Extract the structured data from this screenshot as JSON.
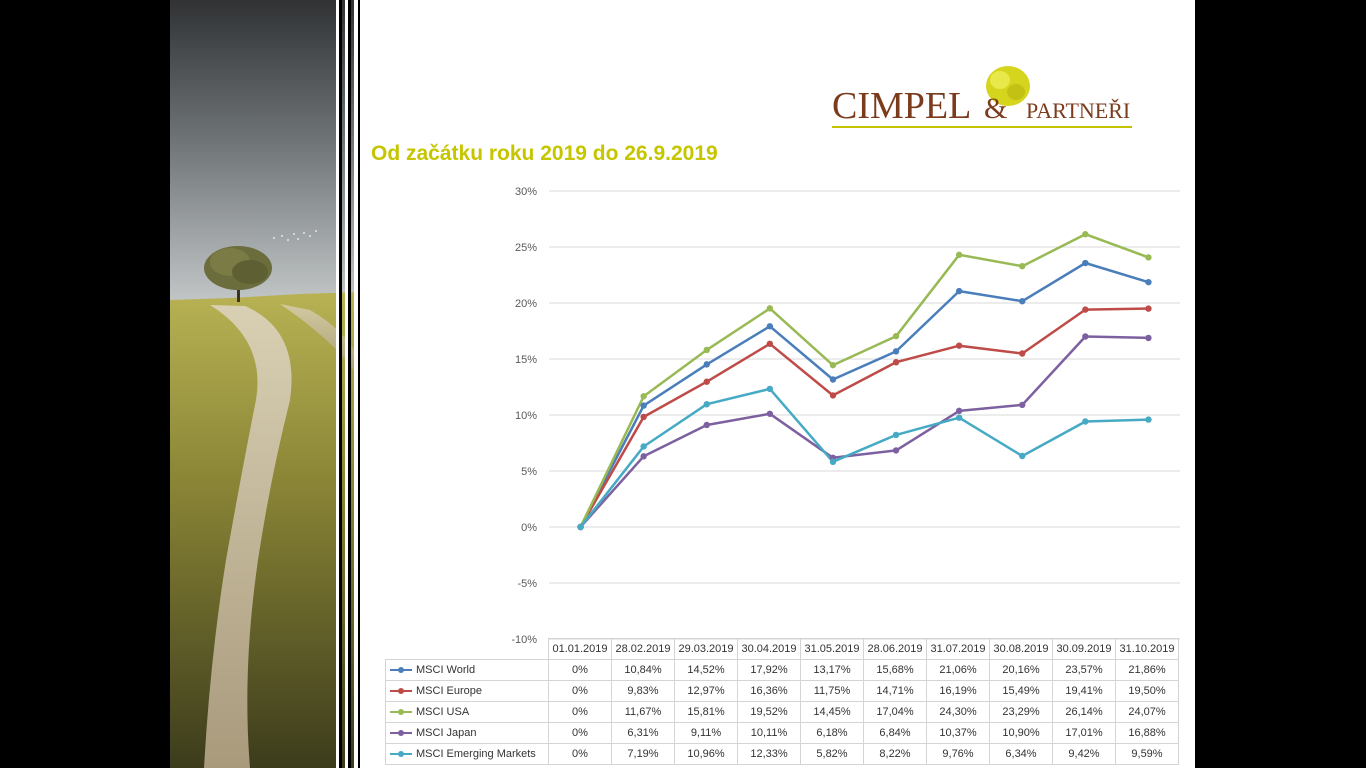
{
  "title": "Od začátku roku 2019 do 26.9.2019",
  "logo": {
    "name": "CIMPEL",
    "amp": "&",
    "suffix": "PARTNEŘI"
  },
  "chart_data": {
    "type": "line",
    "x": [
      "01.01.2019",
      "28.02.2019",
      "29.03.2019",
      "30.04.2019",
      "31.05.2019",
      "28.06.2019",
      "31.07.2019",
      "30.08.2019",
      "30.09.2019",
      "31.10.2019"
    ],
    "y_ticks": [
      "30%",
      "25%",
      "20%",
      "15%",
      "10%",
      "5%",
      "0%",
      "-5%",
      "-10%"
    ],
    "ylim": [
      -10,
      30
    ],
    "grid": true,
    "legend": "table below chart",
    "series": [
      {
        "name": "MSCI World",
        "color": "#4a7ebb",
        "values": [
          0,
          10.84,
          14.52,
          17.92,
          13.17,
          15.68,
          21.06,
          20.16,
          23.57,
          21.86
        ],
        "labels": [
          "0%",
          "10,84%",
          "14,52%",
          "17,92%",
          "13,17%",
          "15,68%",
          "21,06%",
          "20,16%",
          "23,57%",
          "21,86%"
        ]
      },
      {
        "name": "MSCI Europe",
        "color": "#be4b48",
        "values": [
          0,
          9.83,
          12.97,
          16.36,
          11.75,
          14.71,
          16.19,
          15.49,
          19.41,
          19.5
        ],
        "labels": [
          "0%",
          "9,83%",
          "12,97%",
          "16,36%",
          "11,75%",
          "14,71%",
          "16,19%",
          "15,49%",
          "19,41%",
          "19,50%"
        ]
      },
      {
        "name": "MSCI USA",
        "color": "#98b954",
        "values": [
          0,
          11.67,
          15.81,
          19.52,
          14.45,
          17.04,
          24.3,
          23.29,
          26.14,
          24.07
        ],
        "labels": [
          "0%",
          "11,67%",
          "15,81%",
          "19,52%",
          "14,45%",
          "17,04%",
          "24,30%",
          "23,29%",
          "26,14%",
          "24,07%"
        ]
      },
      {
        "name": "MSCI Japan",
        "color": "#7d60a0",
        "values": [
          0,
          6.31,
          9.11,
          10.11,
          6.18,
          6.84,
          10.37,
          10.9,
          17.01,
          16.88
        ],
        "labels": [
          "0%",
          "6,31%",
          "9,11%",
          "10,11%",
          "6,18%",
          "6,84%",
          "10,37%",
          "10,90%",
          "17,01%",
          "16,88%"
        ]
      },
      {
        "name": "MSCI Emerging Markets",
        "color": "#46aac5",
        "values": [
          0,
          7.19,
          10.96,
          12.33,
          5.82,
          8.22,
          9.76,
          6.34,
          9.42,
          9.59
        ],
        "labels": [
          "0%",
          "7,19%",
          "10,96%",
          "12,33%",
          "5,82%",
          "8,22%",
          "9,76%",
          "6,34%",
          "9,42%",
          "9,59%"
        ]
      }
    ]
  }
}
